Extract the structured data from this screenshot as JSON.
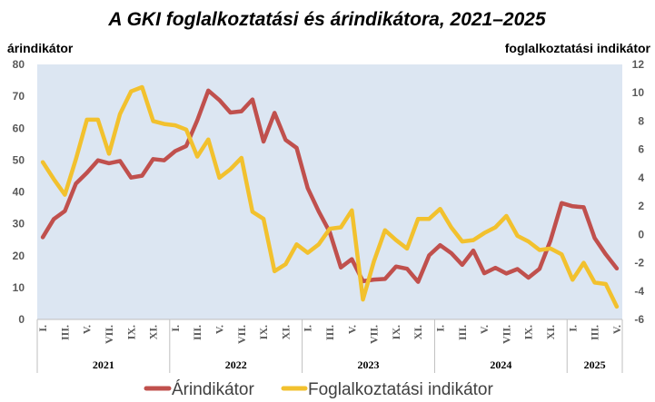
{
  "chart_data": {
    "type": "line",
    "title": "A GKI foglalkoztatási és árindikátora, 2021–2025",
    "ylabel": "árindikátor",
    "y2label": "foglalkoztatási indikátor",
    "ylim": [
      0,
      80
    ],
    "y2lim": [
      -6,
      12
    ],
    "yticks": [
      "0",
      "10",
      "20",
      "30",
      "40",
      "50",
      "60",
      "70",
      "80"
    ],
    "y2ticks": [
      "-6",
      "-4",
      "-2",
      "0",
      "2",
      "4",
      "6",
      "8",
      "10",
      "12"
    ],
    "month_labels": [
      "I.",
      "III.",
      "V.",
      "VII.",
      "IX.",
      "XI.",
      "I.",
      "III.",
      "V.",
      "VII.",
      "IX.",
      "XI.",
      "I.",
      "III.",
      "V.",
      "VII.",
      "IX.",
      "XI.",
      "I.",
      "III.",
      "V.",
      "VII.",
      "IX.",
      "XI.",
      "I.",
      "III.",
      "V."
    ],
    "years": [
      "2021",
      "2022",
      "2023",
      "2024",
      "2025"
    ],
    "legend_position": "bottom",
    "grid": false,
    "plot_background": "#dce6f2",
    "series": [
      {
        "name": "Árindikátor",
        "axis": "left",
        "color": "#c0504d",
        "values": [
          25.8,
          31.5,
          34.0,
          42.6,
          46.0,
          49.9,
          49.0,
          49.7,
          44.5,
          45.1,
          50.3,
          49.9,
          52.8,
          54.4,
          62.5,
          71.8,
          68.8,
          64.9,
          65.3,
          69.0,
          55.8,
          64.8,
          56.3,
          53.8,
          41.2,
          33.9,
          27.4,
          16.3,
          18.9,
          12.0,
          12.5,
          12.7,
          16.6,
          15.9,
          11.8,
          20.1,
          23.3,
          20.8,
          17.1,
          21.6,
          14.5,
          16.2,
          14.4,
          15.8,
          13.1,
          15.9,
          24.8,
          36.5,
          35.5,
          35.2,
          25.5,
          20.4,
          16.0
        ]
      },
      {
        "name": "Foglalkoztatási indikátor",
        "axis": "right",
        "color": "#f2c12e",
        "values": [
          5.1,
          3.9,
          2.8,
          5.3,
          8.1,
          8.1,
          5.7,
          8.5,
          10.1,
          10.4,
          8.0,
          7.8,
          7.7,
          7.4,
          5.5,
          6.7,
          4.0,
          4.6,
          5.4,
          1.6,
          1.1,
          -2.6,
          -2.1,
          -0.7,
          -1.3,
          -0.7,
          0.4,
          0.5,
          1.7,
          -4.6,
          -1.9,
          0.3,
          -0.4,
          -1.0,
          1.1,
          1.1,
          1.8,
          0.5,
          -0.5,
          -0.4,
          0.1,
          0.5,
          1.3,
          -0.1,
          -0.5,
          -1.1,
          -1.0,
          -1.4,
          -3.2,
          -2.0,
          -3.4,
          -3.5,
          -5.1
        ]
      }
    ]
  }
}
